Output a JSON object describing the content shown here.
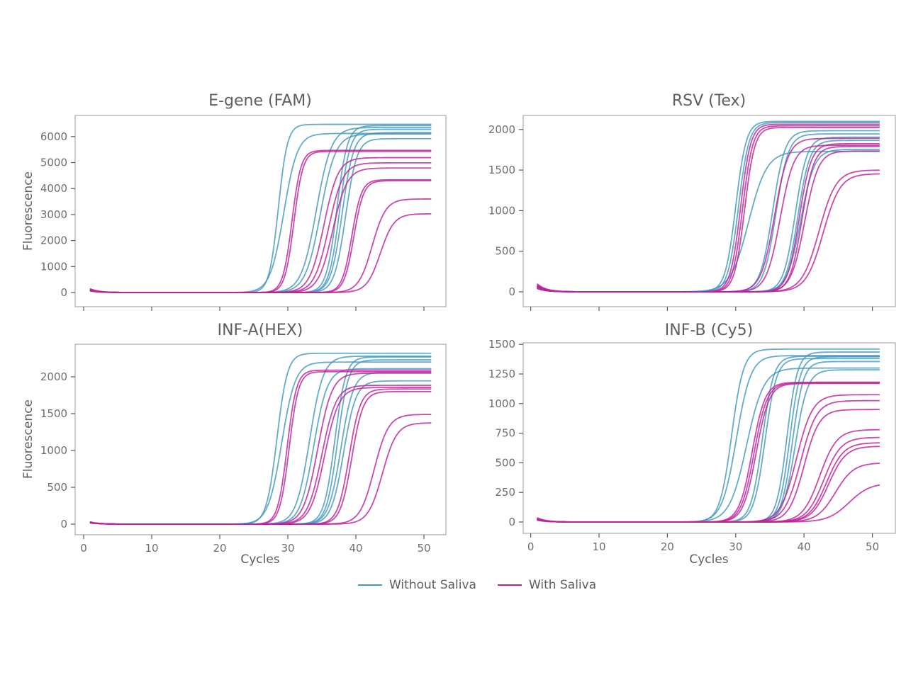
{
  "figure": {
    "background": "#ffffff",
    "axis_color": "#b0b0b0",
    "tick_color": "#5a5a5a",
    "tick_label_color": "#6e6e6e",
    "legend": {
      "items": [
        {
          "label": "Without Saliva",
          "color": "#4399BE"
        },
        {
          "label": "With Saliva",
          "color": "#BE219D"
        }
      ]
    }
  },
  "chart_data": [
    {
      "type": "line",
      "title": "E-gene (FAM)",
      "xlabel": "",
      "ylabel": "Fluorescence",
      "x_range": [
        1,
        51
      ],
      "xticks": [
        0,
        10,
        20,
        30,
        40,
        50
      ],
      "xticklabels_visible": false,
      "yticks": [
        0,
        1000,
        2000,
        3000,
        4000,
        5000,
        6000
      ],
      "ylim": [
        -550,
        6800
      ],
      "grid": false,
      "curve_model": "fluor(c) = plateau/(1+exp(-slope*(c-ct))) + bump*exp(-(c-1)/1.3)",
      "series": [
        {
          "name": "Without Saliva",
          "color": "#4399BE",
          "curves": [
            {
              "ct": 28.6,
              "plateau": 6470,
              "slope": 1.5,
              "bump": 110
            },
            {
              "ct": 29.4,
              "plateau": 6120,
              "slope": 1.0,
              "bump": 80
            },
            {
              "ct": 34.2,
              "plateau": 6350,
              "slope": 0.9,
              "bump": 90
            },
            {
              "ct": 34.8,
              "plateau": 6100,
              "slope": 0.9,
              "bump": 60
            },
            {
              "ct": 37.2,
              "plateau": 6420,
              "slope": 1.3,
              "bump": 80
            },
            {
              "ct": 37.6,
              "plateau": 6280,
              "slope": 1.3,
              "bump": 100
            },
            {
              "ct": 38.0,
              "plateau": 6150,
              "slope": 1.2,
              "bump": 60
            },
            {
              "ct": 38.5,
              "plateau": 5920,
              "slope": 1.2,
              "bump": 80
            }
          ]
        },
        {
          "name": "With Saliva",
          "color": "#BE219D",
          "curves": [
            {
              "ct": 30.6,
              "plateau": 5470,
              "slope": 1.5,
              "bump": 140
            },
            {
              "ct": 30.9,
              "plateau": 5430,
              "slope": 1.5,
              "bump": 100
            },
            {
              "ct": 35.3,
              "plateau": 5190,
              "slope": 0.95,
              "bump": 80
            },
            {
              "ct": 36.0,
              "plateau": 4990,
              "slope": 0.95,
              "bump": 120
            },
            {
              "ct": 36.6,
              "plateau": 4790,
              "slope": 0.95,
              "bump": 80
            },
            {
              "ct": 39.4,
              "plateau": 4340,
              "slope": 1.4,
              "bump": 100
            },
            {
              "ct": 39.7,
              "plateau": 4300,
              "slope": 1.4,
              "bump": 80
            },
            {
              "ct": 42.4,
              "plateau": 3600,
              "slope": 1.0,
              "bump": 60
            },
            {
              "ct": 43.6,
              "plateau": 3030,
              "slope": 1.0,
              "bump": 90
            }
          ]
        }
      ]
    },
    {
      "type": "line",
      "title": "RSV (Tex)",
      "xlabel": "",
      "ylabel": "",
      "x_range": [
        1,
        51
      ],
      "xticks": [
        0,
        10,
        20,
        30,
        40,
        50
      ],
      "xticklabels_visible": false,
      "yticks": [
        0,
        500,
        1000,
        1500,
        2000
      ],
      "ylim": [
        -180,
        2180
      ],
      "grid": false,
      "curve_model": "fluor(c) = plateau/(1+exp(-slope*(c-ct))) + bump*exp(-(c-1)/1.3)",
      "series": [
        {
          "name": "Without Saliva",
          "color": "#4399BE",
          "curves": [
            {
              "ct": 30.0,
              "plateau": 2100,
              "slope": 1.3,
              "bump": 60
            },
            {
              "ct": 30.4,
              "plateau": 2085,
              "slope": 1.3,
              "bump": 40
            },
            {
              "ct": 31.9,
              "plateau": 1730,
              "slope": 0.75,
              "bump": 50
            },
            {
              "ct": 35.4,
              "plateau": 1985,
              "slope": 1.1,
              "bump": 70
            },
            {
              "ct": 35.9,
              "plateau": 1945,
              "slope": 1.1,
              "bump": 40
            },
            {
              "ct": 38.7,
              "plateau": 1905,
              "slope": 1.15,
              "bump": 50
            },
            {
              "ct": 39.1,
              "plateau": 1865,
              "slope": 1.15,
              "bump": 60
            },
            {
              "ct": 39.5,
              "plateau": 1755,
              "slope": 1.0,
              "bump": 40
            }
          ]
        },
        {
          "name": "With Saliva",
          "color": "#BE219D",
          "curves": [
            {
              "ct": 30.7,
              "plateau": 2065,
              "slope": 1.35,
              "bump": 85
            },
            {
              "ct": 31.0,
              "plateau": 2045,
              "slope": 1.35,
              "bump": 60
            },
            {
              "ct": 31.3,
              "plateau": 2025,
              "slope": 1.35,
              "bump": 95
            },
            {
              "ct": 35.7,
              "plateau": 1890,
              "slope": 1.0,
              "bump": 50
            },
            {
              "ct": 36.5,
              "plateau": 1805,
              "slope": 1.0,
              "bump": 70
            },
            {
              "ct": 39.3,
              "plateau": 1825,
              "slope": 1.15,
              "bump": 60
            },
            {
              "ct": 39.7,
              "plateau": 1790,
              "slope": 1.15,
              "bump": 40
            },
            {
              "ct": 40.1,
              "plateau": 1735,
              "slope": 1.0,
              "bump": 55
            },
            {
              "ct": 42.2,
              "plateau": 1500,
              "slope": 0.8,
              "bump": 65
            },
            {
              "ct": 42.8,
              "plateau": 1455,
              "slope": 0.8,
              "bump": 75
            }
          ]
        }
      ]
    },
    {
      "type": "line",
      "title": "INF-A(HEX)",
      "xlabel": "Cycles",
      "ylabel": "Fluorescence",
      "x_range": [
        1,
        51
      ],
      "xticks": [
        0,
        10,
        20,
        30,
        40,
        50
      ],
      "xticklabels_visible": true,
      "yticks": [
        0,
        500,
        1000,
        1500,
        2000
      ],
      "ylim": [
        -140,
        2440
      ],
      "grid": false,
      "curve_model": "fluor(c) = plateau/(1+exp(-slope*(c-ct))) + bump*exp(-(c-1)/1.3)",
      "series": [
        {
          "name": "Without Saliva",
          "color": "#4399BE",
          "curves": [
            {
              "ct": 28.4,
              "plateau": 2320,
              "slope": 1.3,
              "bump": 25
            },
            {
              "ct": 29.1,
              "plateau": 2200,
              "slope": 1.0,
              "bump": 20
            },
            {
              "ct": 33.2,
              "plateau": 2280,
              "slope": 1.0,
              "bump": 25
            },
            {
              "ct": 33.8,
              "plateau": 2110,
              "slope": 1.0,
              "bump": 15
            },
            {
              "ct": 36.9,
              "plateau": 2270,
              "slope": 1.25,
              "bump": 20
            },
            {
              "ct": 37.3,
              "plateau": 2230,
              "slope": 1.25,
              "bump": 25
            },
            {
              "ct": 37.8,
              "plateau": 2060,
              "slope": 1.1,
              "bump": 15
            },
            {
              "ct": 38.2,
              "plateau": 1945,
              "slope": 1.1,
              "bump": 20
            }
          ]
        },
        {
          "name": "With Saliva",
          "color": "#BE219D",
          "curves": [
            {
              "ct": 29.9,
              "plateau": 2090,
              "slope": 1.45,
              "bump": 30
            },
            {
              "ct": 30.2,
              "plateau": 2070,
              "slope": 1.45,
              "bump": 25
            },
            {
              "ct": 34.4,
              "plateau": 2050,
              "slope": 0.95,
              "bump": 20
            },
            {
              "ct": 35.0,
              "plateau": 1885,
              "slope": 0.95,
              "bump": 25
            },
            {
              "ct": 35.4,
              "plateau": 1855,
              "slope": 0.95,
              "bump": 20
            },
            {
              "ct": 39.0,
              "plateau": 1835,
              "slope": 1.2,
              "bump": 25
            },
            {
              "ct": 39.4,
              "plateau": 1800,
              "slope": 1.2,
              "bump": 20
            },
            {
              "ct": 42.7,
              "plateau": 1490,
              "slope": 0.95,
              "bump": 25
            },
            {
              "ct": 43.9,
              "plateau": 1375,
              "slope": 0.95,
              "bump": 20
            }
          ]
        }
      ]
    },
    {
      "type": "line",
      "title": "INF-B (Cy5)",
      "xlabel": "Cycles",
      "ylabel": "",
      "x_range": [
        1,
        51
      ],
      "xticks": [
        0,
        10,
        20,
        30,
        40,
        50
      ],
      "xticklabels_visible": true,
      "yticks": [
        0,
        250,
        500,
        750,
        1000,
        1250,
        1500
      ],
      "ylim": [
        -90,
        1520
      ],
      "grid": false,
      "curve_model": "fluor(c) = plateau/(1+exp(-slope*(c-ct))) + bump*exp(-(c-1)/1.3)",
      "series": [
        {
          "name": "Without Saliva",
          "color": "#4399BE",
          "curves": [
            {
              "ct": 29.4,
              "plateau": 1460,
              "slope": 1.15,
              "bump": 20
            },
            {
              "ct": 30.1,
              "plateau": 1405,
              "slope": 0.95,
              "bump": 15
            },
            {
              "ct": 31.6,
              "plateau": 1300,
              "slope": 0.8,
              "bump": 20
            },
            {
              "ct": 33.9,
              "plateau": 1400,
              "slope": 1.2,
              "bump": 15
            },
            {
              "ct": 34.3,
              "plateau": 1380,
              "slope": 1.2,
              "bump": 20
            },
            {
              "ct": 37.5,
              "plateau": 1435,
              "slope": 1.3,
              "bump": 15
            },
            {
              "ct": 37.9,
              "plateau": 1395,
              "slope": 1.3,
              "bump": 20
            },
            {
              "ct": 38.3,
              "plateau": 1355,
              "slope": 1.25,
              "bump": 15
            },
            {
              "ct": 38.7,
              "plateau": 1285,
              "slope": 1.1,
              "bump": 20
            }
          ]
        },
        {
          "name": "With Saliva",
          "color": "#BE219D",
          "curves": [
            {
              "ct": 32.4,
              "plateau": 1180,
              "slope": 1.05,
              "bump": 30
            },
            {
              "ct": 32.7,
              "plateau": 1175,
              "slope": 1.05,
              "bump": 25
            },
            {
              "ct": 33.0,
              "plateau": 1170,
              "slope": 1.05,
              "bump": 35
            },
            {
              "ct": 38.9,
              "plateau": 1075,
              "slope": 0.85,
              "bump": 20
            },
            {
              "ct": 39.5,
              "plateau": 1025,
              "slope": 0.85,
              "bump": 25
            },
            {
              "ct": 40.0,
              "plateau": 950,
              "slope": 0.9,
              "bump": 20
            },
            {
              "ct": 42.3,
              "plateau": 780,
              "slope": 0.8,
              "bump": 25
            },
            {
              "ct": 42.9,
              "plateau": 715,
              "slope": 0.8,
              "bump": 20
            },
            {
              "ct": 43.3,
              "plateau": 670,
              "slope": 0.8,
              "bump": 25
            },
            {
              "ct": 43.6,
              "plateau": 640,
              "slope": 0.8,
              "bump": 20
            },
            {
              "ct": 44.6,
              "plateau": 500,
              "slope": 0.75,
              "bump": 25
            },
            {
              "ct": 46.6,
              "plateau": 330,
              "slope": 0.65,
              "bump": 20
            }
          ]
        }
      ]
    }
  ]
}
